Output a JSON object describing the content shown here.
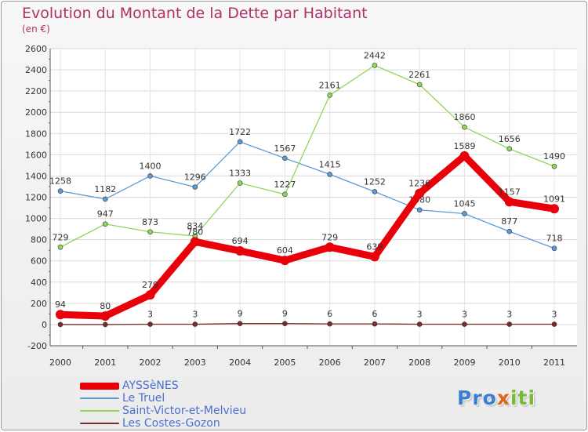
{
  "chart_data": {
    "type": "line",
    "title": "Evolution du Montant de la Dette par Habitant",
    "subtitle": "(en €)",
    "xlabel": "",
    "ylabel": "",
    "x": [
      "2000",
      "2001",
      "2002",
      "2003",
      "2004",
      "2005",
      "2006",
      "2007",
      "2008",
      "2009",
      "2010",
      "2011"
    ],
    "ylim": [
      -200,
      2600
    ],
    "yticks": [
      -200,
      0,
      200,
      400,
      600,
      800,
      1000,
      1200,
      1400,
      1600,
      1800,
      2000,
      2200,
      2400,
      2600
    ],
    "grid": true,
    "legend_position": "bottom-left",
    "series": [
      {
        "name": "Le Truel",
        "color": "#5b9bd5",
        "emphasis": false,
        "values": [
          1258,
          1182,
          1400,
          1296,
          1722,
          1567,
          1415,
          1252,
          1080,
          1045,
          877,
          718
        ]
      },
      {
        "name": "Saint-Victor-et-Melvieu",
        "color": "#8fd65a",
        "emphasis": false,
        "values": [
          729,
          947,
          873,
          834,
          1333,
          1227,
          2161,
          2442,
          2261,
          1860,
          1656,
          1490
        ]
      },
      {
        "name": "Les Costes-Gozon",
        "color": "#7b2b2b",
        "emphasis": false,
        "values": [
          0,
          0,
          3,
          3,
          9,
          9,
          6,
          6,
          3,
          3,
          3,
          3
        ],
        "labels": [
          "",
          "",
          "3",
          "3",
          "9",
          "9",
          "6",
          "6",
          "3",
          "3",
          "3",
          "3"
        ]
      },
      {
        "name": "AYSSèNES",
        "color": "#e8000a",
        "emphasis": true,
        "values": [
          94,
          80,
          279,
          780,
          694,
          604,
          729,
          639,
          1236,
          1589,
          1157,
          1091
        ]
      }
    ],
    "legend_order": [
      "AYSSèNES",
      "Le Truel",
      "Saint-Victor-et-Melvieu",
      "Les Costes-Gozon"
    ]
  },
  "logo": {
    "text_parts": [
      "Pro",
      "x",
      "iti"
    ],
    "colors": [
      "#3a7fd0",
      "#e0641a",
      "#7ab83a"
    ]
  }
}
